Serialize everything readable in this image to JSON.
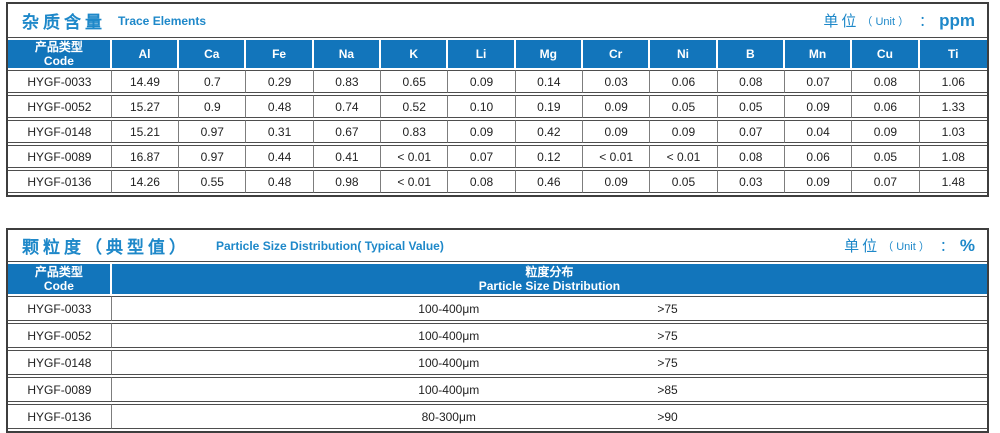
{
  "section1": {
    "title_zh": "杂质含量",
    "title_en": "Trace Elements",
    "unit_zh": "单位",
    "unit_en": "（ Unit ）",
    "unit_colon": "：",
    "unit_value": "ppm",
    "code_header_zh": "产品类型",
    "code_header_en": "Code",
    "element_headers": [
      "Al",
      "Ca",
      "Fe",
      "Na",
      "K",
      "Li",
      "Mg",
      "Cr",
      "Ni",
      "B",
      "Mn",
      "Cu",
      "Ti"
    ],
    "rows": [
      {
        "code": "HYGF-0033",
        "values": [
          "14.49",
          "0.7",
          "0.29",
          "0.83",
          "0.65",
          "0.09",
          "0.14",
          "0.03",
          "0.06",
          "0.08",
          "0.07",
          "0.08",
          "1.06"
        ]
      },
      {
        "code": "HYGF-0052",
        "values": [
          "15.27",
          "0.9",
          "0.48",
          "0.74",
          "0.52",
          "0.10",
          "0.19",
          "0.09",
          "0.05",
          "0.05",
          "0.09",
          "0.06",
          "1.33"
        ]
      },
      {
        "code": "HYGF-0148",
        "values": [
          "15.21",
          "0.97",
          "0.31",
          "0.67",
          "0.83",
          "0.09",
          "0.42",
          "0.09",
          "0.09",
          "0.07",
          "0.04",
          "0.09",
          "1.03"
        ]
      },
      {
        "code": "HYGF-0089",
        "values": [
          "16.87",
          "0.97",
          "0.44",
          "0.41",
          "< 0.01",
          "0.07",
          "0.12",
          "< 0.01",
          "< 0.01",
          "0.08",
          "0.06",
          "0.05",
          "1.08"
        ]
      },
      {
        "code": "HYGF-0136",
        "values": [
          "14.26",
          "0.55",
          "0.48",
          "0.98",
          "< 0.01",
          "0.08",
          "0.46",
          "0.09",
          "0.05",
          "0.03",
          "0.09",
          "0.07",
          "1.48"
        ]
      }
    ]
  },
  "section2": {
    "title_zh": "颗粒度（典型值）",
    "title_en": "Particle Size Distribution( Typical Value)",
    "unit_zh": "单位",
    "unit_en": "（ Unit ）",
    "unit_colon": "：",
    "unit_value": "%",
    "code_header_zh": "产品类型",
    "code_header_en": "Code",
    "dist_header_zh": "粒度分布",
    "dist_header_en": "Particle Size Distribution",
    "rows": [
      {
        "code": "HYGF-0033",
        "range": "100-400μm",
        "pct": ">75"
      },
      {
        "code": "HYGF-0052",
        "range": "100-400μm",
        "pct": ">75"
      },
      {
        "code": "HYGF-0148",
        "range": "100-400μm",
        "pct": ">75"
      },
      {
        "code": "HYGF-0089",
        "range": "100-400μm",
        "pct": ">85"
      },
      {
        "code": "HYGF-0136",
        "range": "80-300μm",
        "pct": ">90"
      }
    ]
  }
}
